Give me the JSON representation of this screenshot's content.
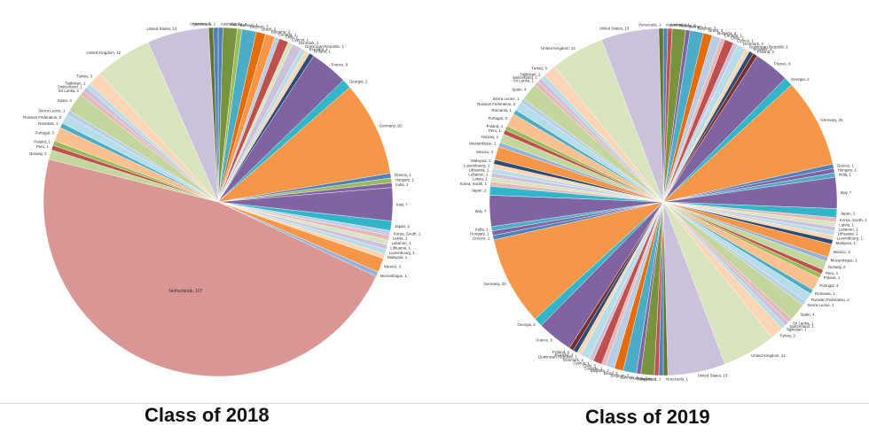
{
  "colors": {
    "Netherlands": "#d99694",
    "United States": "#ccc1da",
    "United Kingdom": "#d7e4bd",
    "Germany": "#f79646",
    "France": "#8064a2",
    "Italy": "#8064a2",
    "Turkey": "#fcd5b5",
    "Mozambique": "#95b3d7",
    "Georgia": "#31b6c9",
    "Spain": "#c3d69b",
    "Portugal": "#fac090",
    "Japan": "#31b6c9",
    "Mexico": "#f79646",
    "Greece": "#4f81bd",
    "Russian Federation": "#b7dee8",
    "Chile": "#c0504d",
    "Brazil": "#e46c0a",
    "Belgium": "#4bacc6",
    "Norway": "#c3d69b",
    "Austria": "#77933c",
    "Sri Lanka": "#e6b9b8",
    "default_palette": [
      "#4f81bd",
      "#c0504d",
      "#9bbb59",
      "#8064a2",
      "#4bacc6",
      "#f79646",
      "#b9cde5",
      "#e6b9b8",
      "#d7e4bd",
      "#ccc1da",
      "#b7dee8",
      "#fcd5b5",
      "#2c4d75",
      "#772c2a",
      "#5f7530"
    ]
  },
  "chart_data": [
    {
      "type": "pie",
      "title": "Class of 2018",
      "start_angle_deg": 0,
      "direction": "clockwise",
      "slices": [
        {
          "label": "Australia",
          "value": 1
        },
        {
          "label": "Austria",
          "value": 3
        },
        {
          "label": "Bahrain",
          "value": 1
        },
        {
          "label": "Belgium",
          "value": 3
        },
        {
          "label": "Brazil",
          "value": 2
        },
        {
          "label": "Bulgaria",
          "value": 2
        },
        {
          "label": "Canada",
          "value": 1
        },
        {
          "label": "Chile",
          "value": 2
        },
        {
          "label": "Cyprus",
          "value": 1
        },
        {
          "label": "Denmark",
          "value": 2
        },
        {
          "label": "Dominican Republic",
          "value": 1
        },
        {
          "label": "Ecuador",
          "value": 1
        },
        {
          "label": "Finland",
          "value": 1
        },
        {
          "label": "France",
          "value": 8
        },
        {
          "label": "Georgia",
          "value": 2
        },
        {
          "label": "Germany",
          "value": 20
        },
        {
          "label": "Greece",
          "value": 1
        },
        {
          "label": "Hungary",
          "value": 1
        },
        {
          "label": "India",
          "value": 1
        },
        {
          "label": "Italy",
          "value": 7
        },
        {
          "label": "Japan",
          "value": 2
        },
        {
          "label": "Korea, South",
          "value": 1
        },
        {
          "label": "Latvia",
          "value": 1
        },
        {
          "label": "Lebanon",
          "value": 1
        },
        {
          "label": "Lithuania",
          "value": 1
        },
        {
          "label": "Luxembourg",
          "value": 1
        },
        {
          "label": "Malaysia",
          "value": 1
        },
        {
          "label": "Mexico",
          "value": 3
        },
        {
          "label": "Mozambique",
          "value": 1
        },
        {
          "label": "Netherlands",
          "value": 107
        },
        {
          "label": "Norway",
          "value": 2
        },
        {
          "label": "Peru",
          "value": 1
        },
        {
          "label": "Poland",
          "value": 1
        },
        {
          "label": "Portugal",
          "value": 3
        },
        {
          "label": "Romania",
          "value": 1
        },
        {
          "label": "Russian Federation",
          "value": 2
        },
        {
          "label": "Sierra Leone",
          "value": 1
        },
        {
          "label": "Spain",
          "value": 4
        },
        {
          "label": "Sri Lanka",
          "value": 1
        },
        {
          "label": "Switzerland",
          "value": 1
        },
        {
          "label": "Tajikistan",
          "value": 1
        },
        {
          "label": "Turkey",
          "value": 3
        },
        {
          "label": "United Kingdom",
          "value": 12
        },
        {
          "label": "United States",
          "value": 13
        },
        {
          "label": "Argentina",
          "value": 1
        },
        {
          "label": "Venezuela",
          "value": 1
        }
      ]
    },
    {
      "type": "pie",
      "title": "Class of 2019",
      "start_angle_deg": 0,
      "direction": "clockwise",
      "slices": [
        {
          "label": "Argentina",
          "value": 1
        },
        {
          "label": "Australia",
          "value": 1
        },
        {
          "label": "Austria",
          "value": 3
        },
        {
          "label": "Bahrain",
          "value": 1
        },
        {
          "label": "Belgium",
          "value": 3
        },
        {
          "label": "Brazil",
          "value": 2
        },
        {
          "label": "Bulgaria",
          "value": 2
        },
        {
          "label": "Canada",
          "value": 1
        },
        {
          "label": "Chile",
          "value": 2
        },
        {
          "label": "Cyprus",
          "value": 1
        },
        {
          "label": "Denmark",
          "value": 2
        },
        {
          "label": "Dominican Republic",
          "value": 1
        },
        {
          "label": "Ecuador",
          "value": 1
        },
        {
          "label": "Finland",
          "value": 1
        },
        {
          "label": "France",
          "value": 8
        },
        {
          "label": "Georgia",
          "value": 2
        },
        {
          "label": "Germany",
          "value": 20
        },
        {
          "label": "Greece",
          "value": 1
        },
        {
          "label": "Hungary",
          "value": 1
        },
        {
          "label": "India",
          "value": 1
        },
        {
          "label": "Italy",
          "value": 7
        },
        {
          "label": "Japan",
          "value": 2
        },
        {
          "label": "Korea, South",
          "value": 1
        },
        {
          "label": "Latvia",
          "value": 1
        },
        {
          "label": "Lebanon",
          "value": 1
        },
        {
          "label": "Lithuania",
          "value": 1
        },
        {
          "label": "Luxembourg",
          "value": 1
        },
        {
          "label": "Malaysia",
          "value": 1
        },
        {
          "label": "Mexico",
          "value": 3
        },
        {
          "label": "Mozambique",
          "value": 1
        },
        {
          "label": "Norway",
          "value": 2
        },
        {
          "label": "Peru",
          "value": 1
        },
        {
          "label": "Poland",
          "value": 1
        },
        {
          "label": "Portugal",
          "value": 3
        },
        {
          "label": "Romania",
          "value": 1
        },
        {
          "label": "Russian Federation",
          "value": 2
        },
        {
          "label": "Sierra Leone",
          "value": 1
        },
        {
          "label": "Spain",
          "value": 4
        },
        {
          "label": "Sri Lanka",
          "value": 1
        },
        {
          "label": "Switzerland",
          "value": 1
        },
        {
          "label": "Tajikistan",
          "value": 1
        },
        {
          "label": "Turkey",
          "value": 3
        },
        {
          "label": "United Kingdom",
          "value": 12
        },
        {
          "label": "United States",
          "value": 13
        },
        {
          "label": "Venezuela",
          "value": 1
        },
        {
          "label": "Argentina",
          "value": 1
        },
        {
          "label": "Australia",
          "value": 1
        },
        {
          "label": "Austria",
          "value": 3
        },
        {
          "label": "Bahrain",
          "value": 1
        },
        {
          "label": "Belgium",
          "value": 3
        },
        {
          "label": "Brazil",
          "value": 2
        },
        {
          "label": "Bulgaria",
          "value": 2
        },
        {
          "label": "Canada",
          "value": 1
        },
        {
          "label": "Chile",
          "value": 2
        },
        {
          "label": "Cyprus",
          "value": 1
        },
        {
          "label": "Denmark",
          "value": 2
        },
        {
          "label": "Dominican Republic",
          "value": 1
        },
        {
          "label": "Ecuador",
          "value": 1
        },
        {
          "label": "Finland",
          "value": 1
        },
        {
          "label": "France",
          "value": 8
        },
        {
          "label": "Georgia",
          "value": 2
        },
        {
          "label": "Germany",
          "value": 20
        },
        {
          "label": "Greece",
          "value": 1
        },
        {
          "label": "Hungary",
          "value": 1
        },
        {
          "label": "India",
          "value": 1
        },
        {
          "label": "Italy",
          "value": 7
        },
        {
          "label": "Japan",
          "value": 2
        },
        {
          "label": "Korea, South",
          "value": 1
        },
        {
          "label": "Latvia",
          "value": 1
        },
        {
          "label": "Lebanon",
          "value": 1
        },
        {
          "label": "Lithuania",
          "value": 1
        },
        {
          "label": "Luxembourg",
          "value": 1
        },
        {
          "label": "Malaysia",
          "value": 1
        },
        {
          "label": "Mexico",
          "value": 3
        },
        {
          "label": "Mozambique",
          "value": 1
        },
        {
          "label": "Norway",
          "value": 2
        },
        {
          "label": "Peru",
          "value": 1
        },
        {
          "label": "Poland",
          "value": 1
        },
        {
          "label": "Portugal",
          "value": 3
        },
        {
          "label": "Romania",
          "value": 1
        },
        {
          "label": "Russian Federation",
          "value": 2
        },
        {
          "label": "Sierra Leone",
          "value": 1
        },
        {
          "label": "Spain",
          "value": 4
        },
        {
          "label": "Sri Lanka",
          "value": 1
        },
        {
          "label": "Switzerland",
          "value": 1
        },
        {
          "label": "Tajikistan",
          "value": 1
        },
        {
          "label": "Turkey",
          "value": 3
        },
        {
          "label": "United Kingdom",
          "value": 12
        },
        {
          "label": "United States",
          "value": 13
        },
        {
          "label": "Venezuela",
          "value": 1
        }
      ]
    }
  ]
}
